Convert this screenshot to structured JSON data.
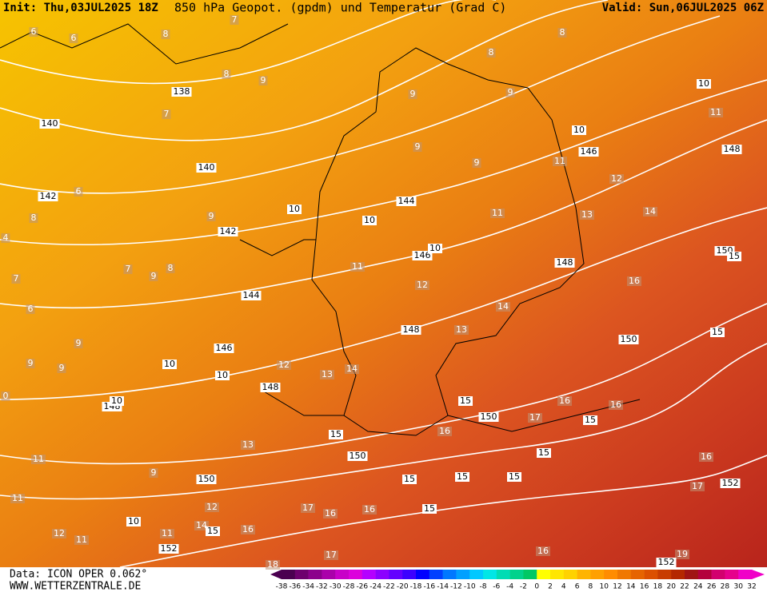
{
  "header": {
    "init": "Init: Thu,03JUL2025 18Z",
    "title": "850 hPa Geopot. (gpdm) und Temperatur (Grad C)",
    "valid": "Valid: Sun,06JUL2025 06Z"
  },
  "footer": {
    "data": "Data: ICON OPER 0.062°",
    "site": "WWW.WETTERZENTRALE.DE"
  },
  "geopotential_labels": [
    138,
    140,
    140,
    142,
    142,
    144,
    144,
    146,
    146,
    146,
    148,
    148,
    148,
    148,
    148,
    150,
    150,
    150,
    150,
    150,
    152,
    152,
    152,
    15,
    15,
    15,
    15,
    15,
    15,
    15,
    15,
    15,
    15,
    15,
    10,
    10,
    10,
    10,
    10,
    10,
    10,
    10,
    10
  ],
  "temperature_labels": [
    6,
    6,
    8,
    7,
    8,
    8,
    8,
    9,
    9,
    9,
    7,
    11,
    9,
    9,
    11,
    12,
    6,
    8,
    9,
    11,
    13,
    14,
    7,
    9,
    8,
    7,
    11,
    12,
    16,
    6,
    14,
    13,
    9,
    9,
    9,
    12,
    13,
    14,
    16,
    16,
    17,
    16,
    13,
    11,
    16,
    9,
    17,
    11,
    12,
    17,
    16,
    16,
    14,
    16,
    11,
    12,
    11,
    16,
    19,
    17,
    18,
    4,
    0
  ],
  "colorbar": {
    "labels": [
      -38,
      -36,
      -34,
      -32,
      -30,
      -28,
      -26,
      -24,
      -22,
      -20,
      -18,
      -16,
      -14,
      -12,
      -10,
      -8,
      -6,
      -4,
      -2,
      0,
      2,
      4,
      6,
      8,
      10,
      12,
      14,
      16,
      18,
      20,
      22,
      24,
      26,
      28,
      30,
      32
    ],
    "colors": [
      "#4b0050",
      "#6e006e",
      "#8c008c",
      "#aa00aa",
      "#c800c8",
      "#dc00dc",
      "#b400ff",
      "#8c00ff",
      "#6400ff",
      "#3c00ff",
      "#0000ff",
      "#0040ff",
      "#0078ff",
      "#00a0ff",
      "#00c8ff",
      "#00e6e6",
      "#00dcb4",
      "#00d28c",
      "#00c864",
      "#ffff00",
      "#ffe600",
      "#ffd200",
      "#ffb400",
      "#ffa000",
      "#ff8c00",
      "#f07800",
      "#e66400",
      "#dc5000",
      "#c83c00",
      "#b42800",
      "#a01414",
      "#b4003c",
      "#d2006e",
      "#e6008c",
      "#f000c8"
    ]
  }
}
